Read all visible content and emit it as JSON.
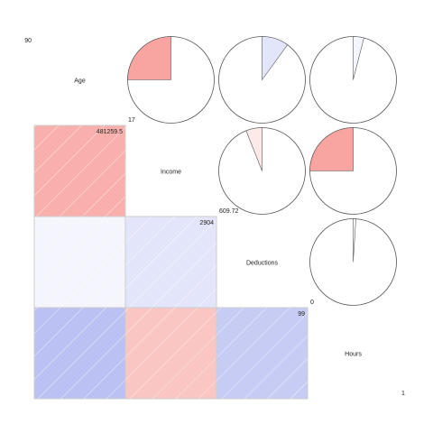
{
  "chart_data": {
    "type": "correlogram",
    "title": "",
    "variables": [
      "Age",
      "Income",
      "Deductions",
      "Hours"
    ],
    "ranges": [
      {
        "min": "17",
        "max": "90"
      },
      {
        "min": "609.72",
        "max": "481259.5"
      },
      {
        "min": "0",
        "max": "2904"
      },
      {
        "min": "1",
        "max": "99"
      }
    ],
    "lower_panel": "shade",
    "upper_panel": "pie",
    "correlations": [
      {
        "row": "Age",
        "col": "Income",
        "r": -0.22
      },
      {
        "row": "Age",
        "col": "Deductions",
        "r": 0.04
      },
      {
        "row": "Age",
        "col": "Hours",
        "r": 0.24
      },
      {
        "row": "Income",
        "col": "Deductions",
        "r": 0.1
      },
      {
        "row": "Income",
        "col": "Hours",
        "r": -0.16
      },
      {
        "row": "Deductions",
        "col": "Hours",
        "r": 0.2
      }
    ],
    "pie_values": [
      {
        "row": "Age",
        "col": "Income",
        "r": -0.25
      },
      {
        "row": "Age",
        "col": "Deductions",
        "r": 0.1
      },
      {
        "row": "Age",
        "col": "Hours",
        "r": 0.04
      },
      {
        "row": "Income",
        "col": "Deductions",
        "r": -0.06
      },
      {
        "row": "Income",
        "col": "Hours",
        "r": -0.25
      },
      {
        "row": "Deductions",
        "col": "Hours",
        "r": 0.01
      }
    ],
    "colors": {
      "positive": "#7f8ce8",
      "negative": "#f25c54",
      "hatch": "#ffffff",
      "pie_outline": "#555555",
      "cell_border": "#cccccc"
    }
  }
}
